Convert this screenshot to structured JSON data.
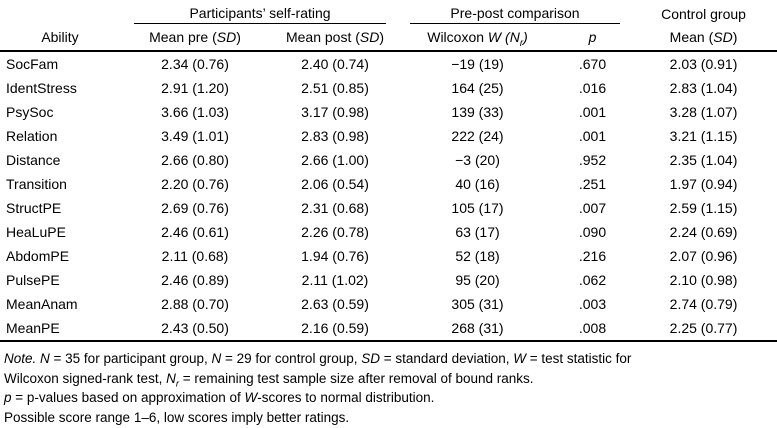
{
  "table": {
    "spanners": {
      "self_rating": "Participants’ self-rating",
      "pre_post": "Pre-post comparison",
      "control": "Control group"
    },
    "headers": {
      "ability": "Ability",
      "mean_pre": [
        {
          "t": "Mean pre ("
        },
        {
          "t": "SD",
          "i": true
        },
        {
          "t": ")"
        }
      ],
      "mean_post": [
        {
          "t": "Mean post ("
        },
        {
          "t": "SD",
          "i": true
        },
        {
          "t": ")"
        }
      ],
      "wilcoxon": [
        {
          "t": "Wilcoxon "
        },
        {
          "t": "W (N",
          "i": true
        },
        {
          "t": "r",
          "i": true,
          "sub": true
        },
        {
          "t": ")",
          "i": true
        }
      ],
      "p": [
        {
          "t": "p",
          "i": true
        }
      ],
      "control_mean": [
        {
          "t": "Mean ("
        },
        {
          "t": "SD",
          "i": true
        },
        {
          "t": ")"
        }
      ]
    },
    "rows": [
      {
        "ability": "SocFam",
        "pre": "2.34 (0.76)",
        "post": "2.40 (0.74)",
        "w": "−19 (19)",
        "p": ".670",
        "control": "2.03 (0.91)"
      },
      {
        "ability": "IdentStress",
        "pre": "2.91 (1.20)",
        "post": "2.51 (0.85)",
        "w": "164 (25)",
        "p": ".016",
        "control": "2.83 (1.04)"
      },
      {
        "ability": "PsySoc",
        "pre": "3.66 (1.03)",
        "post": "3.17 (0.98)",
        "w": "139 (33)",
        "p": ".001",
        "control": "3.28 (1.07)"
      },
      {
        "ability": "Relation",
        "pre": "3.49 (1.01)",
        "post": "2.83 (0.98)",
        "w": "222 (24)",
        "p": ".001",
        "control": "3.21 (1.15)"
      },
      {
        "ability": "Distance",
        "pre": "2.66 (0.80)",
        "post": "2.66 (1.00)",
        "w": "−3 (20)",
        "p": ".952",
        "control": "2.35 (1.04)"
      },
      {
        "ability": "Transition",
        "pre": "2.20 (0.76)",
        "post": "2.06 (0.54)",
        "w": "40 (16)",
        "p": ".251",
        "control": "1.97 (0.94)"
      },
      {
        "ability": "StructPE",
        "pre": "2.69 (0.76)",
        "post": "2.31 (0.68)",
        "w": "105 (17)",
        "p": ".007",
        "control": "2.59 (1.15)"
      },
      {
        "ability": "HeaLuPE",
        "pre": "2.46 (0.61)",
        "post": "2.26 (0.78)",
        "w": "63 (17)",
        "p": ".090",
        "control": "2.24 (0.69)"
      },
      {
        "ability": "AbdomPE",
        "pre": "2.11 (0.68)",
        "post": "1.94 (0.76)",
        "w": "52 (18)",
        "p": ".216",
        "control": "2.07 (0.96)"
      },
      {
        "ability": "PulsePE",
        "pre": "2.46 (0.89)",
        "post": "2.11 (1.02)",
        "w": "95 (20)",
        "p": ".062",
        "control": "2.10 (0.98)"
      },
      {
        "ability": "MeanAnam",
        "pre": "2.88 (0.70)",
        "post": "2.63 (0.59)",
        "w": "305 (31)",
        "p": ".003",
        "control": "2.74 (0.79)"
      },
      {
        "ability": "MeanPE",
        "pre": "2.43 (0.50)",
        "post": "2.16 (0.59)",
        "w": "268 (31)",
        "p": ".008",
        "control": "2.25 (0.77)"
      }
    ]
  },
  "notes": {
    "line1": [
      {
        "t": "Note. ",
        "i": true
      },
      {
        "t": "N",
        "i": true
      },
      {
        "t": " = 35 for participant group, "
      },
      {
        "t": "N",
        "i": true
      },
      {
        "t": " = 29 for control group, "
      },
      {
        "t": "SD",
        "i": true
      },
      {
        "t": " = standard deviation, "
      },
      {
        "t": "W",
        "i": true
      },
      {
        "t": " = test statistic for"
      }
    ],
    "line2": [
      {
        "t": "Wilcoxon signed-rank test, "
      },
      {
        "t": "N",
        "i": true
      },
      {
        "t": "r",
        "i": true,
        "sub": true
      },
      {
        "t": " = remaining test sample size after removal of bound ranks."
      }
    ],
    "line3": [
      {
        "t": "p",
        "i": true
      },
      {
        "t": " = p-values based on approximation of "
      },
      {
        "t": "W",
        "i": true
      },
      {
        "t": "-scores to normal distribution."
      }
    ],
    "line4": [
      {
        "t": "Possible score range 1–6, low scores imply better ratings."
      }
    ]
  }
}
